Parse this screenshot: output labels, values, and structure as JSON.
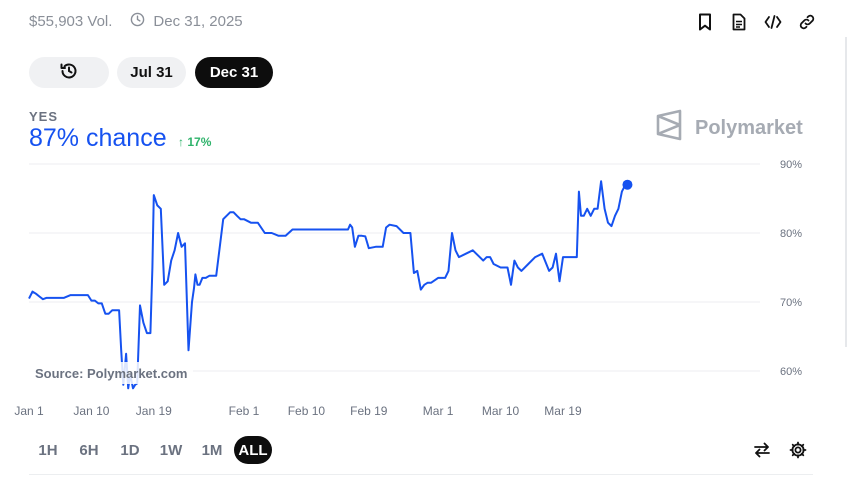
{
  "header": {
    "volume": "$55,903 Vol.",
    "date": "Dec 31, 2025",
    "icons": [
      "bookmark-icon",
      "document-icon",
      "code-icon",
      "link-icon"
    ]
  },
  "date_pills": {
    "history_icon": "history-icon",
    "items": [
      {
        "label": "Jul 31",
        "selected": false
      },
      {
        "label": "Dec 31",
        "selected": true
      }
    ]
  },
  "outcome": {
    "label": "YES",
    "chance": "87% chance",
    "delta": "17%",
    "delta_direction": "up"
  },
  "brand": {
    "name": "Polymarket",
    "color": "#a6abb3"
  },
  "source_label": "Source: Polymarket.com",
  "time_ranges": [
    {
      "label": "1H",
      "active": false
    },
    {
      "label": "6H",
      "active": false
    },
    {
      "label": "1D",
      "active": false
    },
    {
      "label": "1W",
      "active": false
    },
    {
      "label": "1M",
      "active": false
    },
    {
      "label": "ALL",
      "active": true
    }
  ],
  "bottom_icons": [
    "swap-icon",
    "settings-icon"
  ],
  "colors": {
    "accent": "#1652f0",
    "positive": "#2fb36b",
    "text_muted": "#8a8f98"
  },
  "chart_data": {
    "type": "line",
    "title": "",
    "ylabel": "",
    "ylim": [
      57,
      90
    ],
    "xlim": [
      0,
      107
    ],
    "grid": true,
    "y_ticks": [
      "60%",
      "70%",
      "80%",
      "90%"
    ],
    "y_tick_values": [
      60,
      70,
      80,
      90
    ],
    "x_tick_labels": [
      "Jan 1",
      "Jan 10",
      "Jan 19",
      "Feb 1",
      "Feb 10",
      "Feb 19",
      "Mar 1",
      "Mar 10",
      "Mar 19"
    ],
    "x_tick_values": [
      0,
      9,
      18,
      31,
      40,
      49,
      59,
      68,
      77
    ],
    "series": [
      {
        "color": "#1652f0",
        "x": [
          0,
          0.5,
          1,
          1.5,
          2,
          2.5,
          3,
          3.5,
          4,
          5,
          6,
          7,
          8,
          8.5,
          9,
          9.5,
          10,
          10.5,
          11,
          11.5,
          12,
          12.5,
          13,
          13.3,
          13.6,
          14,
          14.3,
          14.6,
          15,
          15.3,
          15.6,
          16,
          16.5,
          17,
          17.5,
          17.8,
          18,
          18.5,
          19,
          19.5,
          20,
          20.5,
          21,
          21.5,
          22,
          22.5,
          23,
          23.5,
          23.8,
          24,
          24.3,
          24.6,
          25,
          25.5,
          26,
          26.5,
          27,
          28,
          29,
          29.5,
          30,
          30.5,
          31,
          32,
          33,
          34,
          35,
          36,
          36.5,
          37,
          38,
          39,
          40,
          41,
          42,
          43,
          44,
          45,
          46,
          46.3,
          46.6,
          47,
          47.5,
          48,
          48.5,
          49,
          50,
          50.5,
          51,
          51.5,
          52,
          53,
          54,
          55,
          55.5,
          56,
          56.5,
          57,
          57.5,
          58,
          59,
          60,
          60.5,
          61,
          61.5,
          62,
          63,
          64,
          65,
          65.5,
          66,
          66.5,
          67,
          68,
          69,
          69.5,
          70,
          70.5,
          71,
          72,
          73,
          74,
          75,
          75.5,
          76,
          76.5,
          77,
          78,
          79,
          79.3,
          79.6,
          80,
          80.5,
          81,
          81.5,
          82,
          82.5,
          83,
          83.5,
          84,
          84.5,
          85,
          85.5,
          86,
          86.3
        ],
        "y": [
          70.5,
          71.5,
          71.2,
          70.8,
          70.4,
          70.6,
          70.6,
          70.6,
          70.6,
          70.6,
          71,
          71,
          71,
          71,
          70.2,
          70.2,
          69.8,
          69.8,
          68.3,
          68.3,
          68.8,
          68.8,
          68.8,
          63,
          58,
          62.5,
          57.5,
          59.5,
          57.5,
          58,
          58.2,
          69.5,
          67,
          65.5,
          65.5,
          75,
          85.5,
          84,
          83.5,
          72.5,
          73,
          76,
          77.5,
          80,
          78,
          78.5,
          63,
          70,
          72,
          74,
          72.5,
          72.5,
          73.5,
          73.5,
          73.8,
          73.8,
          73.8,
          82,
          83,
          83,
          82.5,
          82,
          82,
          81.5,
          81.5,
          80,
          80,
          79.6,
          79.6,
          79.6,
          80.5,
          80.5,
          80.5,
          80.5,
          80.5,
          80.5,
          80.5,
          80.5,
          80.5,
          81.2,
          80.8,
          78,
          79.6,
          79.6,
          79.5,
          77.8,
          78,
          78,
          78,
          80.8,
          81.2,
          81,
          80,
          80,
          74.2,
          74.5,
          71.8,
          72.5,
          72.8,
          72.8,
          73.5,
          73.5,
          74.5,
          80,
          77.5,
          76.5,
          77,
          77.5,
          76.5,
          76,
          76.5,
          76.5,
          75.5,
          75,
          75,
          72.5,
          76,
          75,
          74.5,
          75.5,
          76.5,
          77,
          74.5,
          75,
          77,
          73,
          76.5,
          76.5,
          76.5,
          86,
          82.5,
          82.5,
          83.5,
          82.5,
          83.5,
          83.5,
          87.5,
          83.5,
          81.5,
          81,
          82.5,
          83.5,
          86,
          87,
          87
        ]
      }
    ]
  }
}
